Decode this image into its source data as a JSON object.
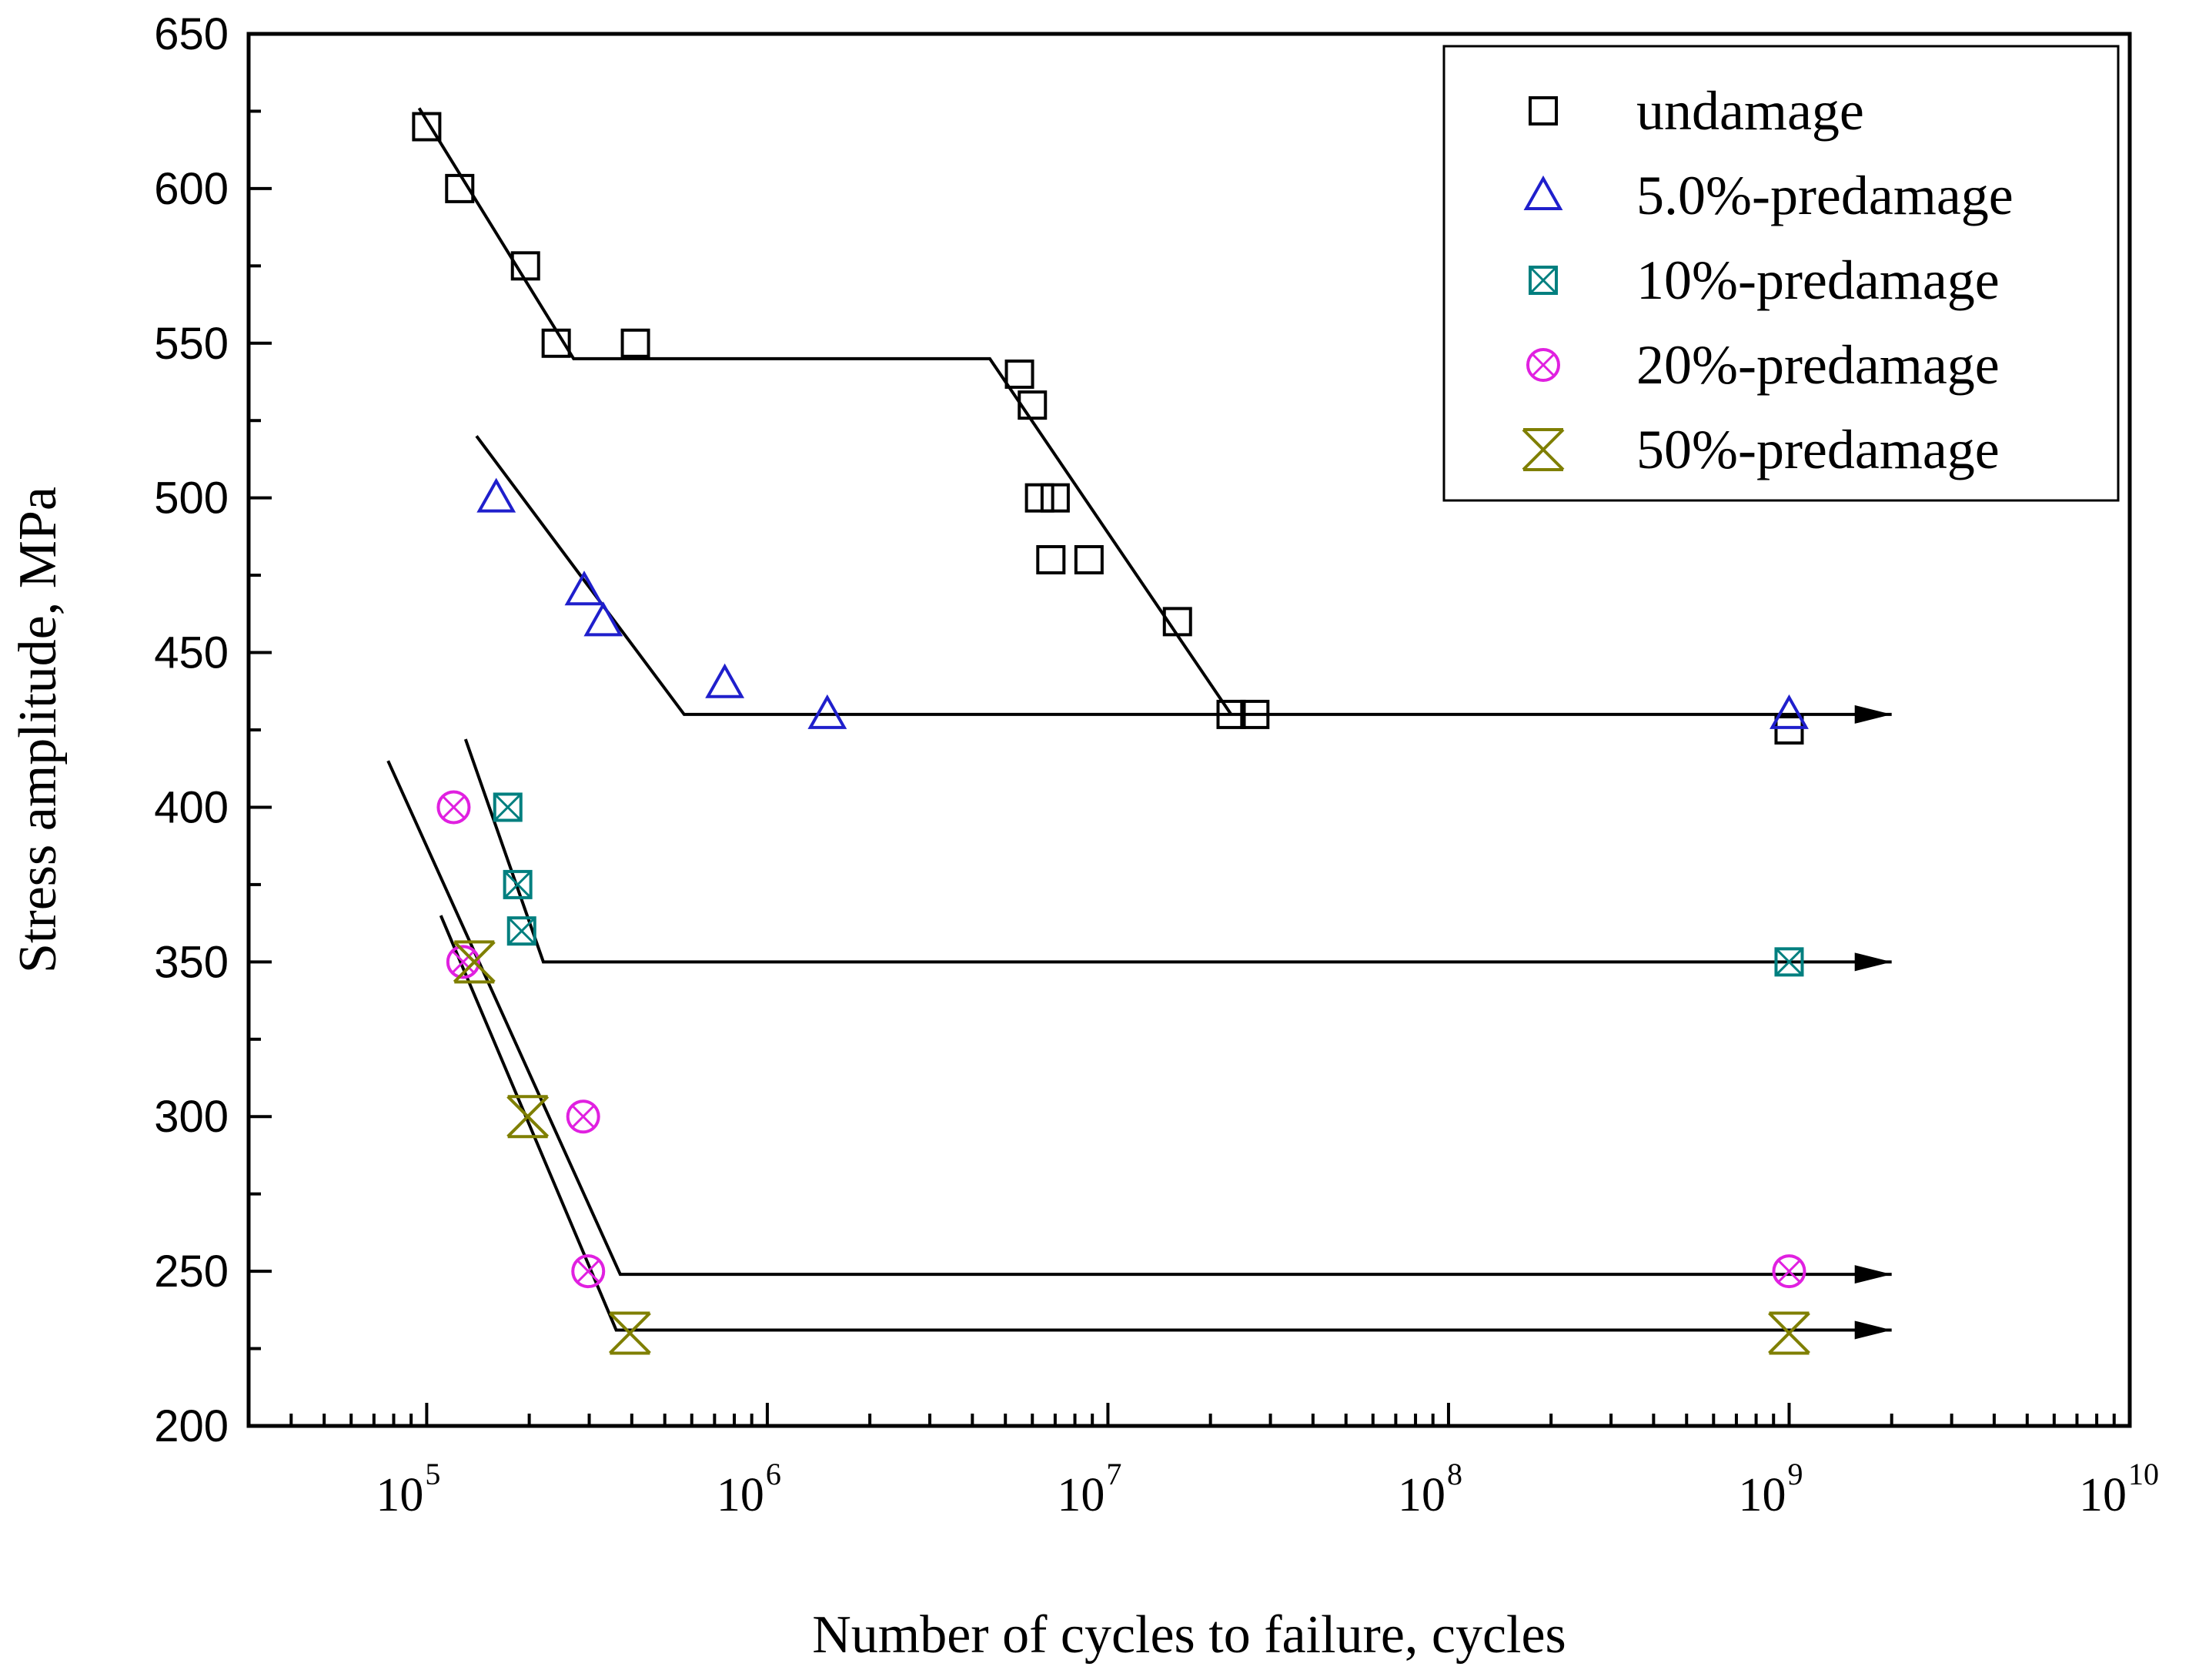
{
  "chart_data": {
    "type": "scatter",
    "xscale": "log",
    "xlim": [
      30000,
      10000000000
    ],
    "ylim": [
      200,
      650
    ],
    "xlabel": "Number of cycles to failure, cycles",
    "ylabel": "Stress amplitude,  MPa",
    "y_ticks": [
      200,
      250,
      300,
      350,
      400,
      450,
      500,
      550,
      600,
      650
    ],
    "x_ticks": [
      {
        "value": 100000,
        "base": "10",
        "exp": "5"
      },
      {
        "value": 1000000,
        "base": "10",
        "exp": "6"
      },
      {
        "value": 10000000,
        "base": "10",
        "exp": "7"
      },
      {
        "value": 100000000,
        "base": "10",
        "exp": "8"
      },
      {
        "value": 1000000000,
        "base": "10",
        "exp": "9"
      },
      {
        "value": 10000000000,
        "base": "10",
        "exp": "10"
      }
    ],
    "legend_position": "top-right",
    "series": [
      {
        "name": "undamage",
        "marker": "square",
        "color": "#000000",
        "points": [
          [
            100000,
            620
          ],
          [
            125000,
            600
          ],
          [
            195000,
            575
          ],
          [
            240000,
            550
          ],
          [
            410000,
            550
          ],
          [
            5500000,
            540
          ],
          [
            6000000,
            530
          ],
          [
            6300000,
            500
          ],
          [
            7000000,
            500
          ],
          [
            6800000,
            480
          ],
          [
            8800000,
            480
          ],
          [
            16000000,
            460
          ],
          [
            23000000,
            430
          ],
          [
            27000000,
            430
          ],
          [
            1000000000,
            425
          ]
        ]
      },
      {
        "name": "5.0%-predamage",
        "marker": "triangle",
        "color": "#1f1fcc",
        "points": [
          [
            160000,
            500
          ],
          [
            290000,
            470
          ],
          [
            330000,
            460
          ],
          [
            750000,
            440
          ],
          [
            1500000,
            430
          ],
          [
            1000000000,
            430
          ]
        ]
      },
      {
        "name": "10%-predamage",
        "marker": "square-x",
        "color": "#007f7f",
        "points": [
          [
            173000,
            400
          ],
          [
            185000,
            375
          ],
          [
            190000,
            360
          ],
          [
            1000000000,
            350
          ]
        ]
      },
      {
        "name": "20%-predamage",
        "marker": "circle-x",
        "color": "#e020e0",
        "points": [
          [
            120000,
            400
          ],
          [
            128000,
            350
          ],
          [
            288000,
            300
          ],
          [
            298000,
            250
          ],
          [
            1000000000,
            250
          ]
        ]
      },
      {
        "name": "50%-predamage",
        "marker": "hourglass",
        "color": "#7f7f00",
        "points": [
          [
            138000,
            350
          ],
          [
            198000,
            300
          ],
          [
            395000,
            230
          ],
          [
            1000000000,
            230
          ]
        ]
      }
    ],
    "fit_lines": [
      {
        "points": [
          [
            95000,
            626
          ],
          [
            270000,
            545
          ],
          [
            4500000,
            545
          ],
          [
            23000000,
            430
          ]
        ]
      },
      {
        "points": [
          [
            140000,
            520
          ],
          [
            570000,
            430
          ],
          [
            2000000000,
            430
          ]
        ],
        "arrow": true
      },
      {
        "points": [
          [
            130000,
            422
          ],
          [
            220000,
            350
          ],
          [
            2000000000,
            350
          ]
        ],
        "arrow": true
      },
      {
        "points": [
          [
            77000,
            415
          ],
          [
            370000,
            249
          ],
          [
            2000000000,
            249
          ]
        ],
        "arrow": true
      },
      {
        "points": [
          [
            110000,
            365
          ],
          [
            360000,
            231
          ],
          [
            2000000000,
            231
          ]
        ],
        "arrow": true
      }
    ]
  }
}
